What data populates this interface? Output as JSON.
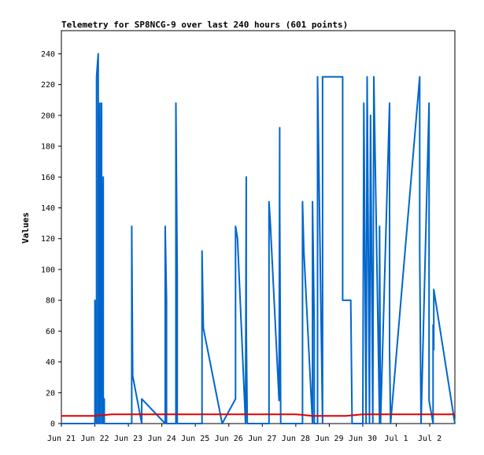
{
  "chart_data": {
    "type": "line",
    "title": "Telemetry for SP8NCG-9 over last 240 hours (601 points)",
    "xlabel": "",
    "ylabel": "Values",
    "x_ticks": [
      "Jun 21",
      "Jun 22",
      "Jun 23",
      "Jun 24",
      "Jun 25",
      "Jun 26",
      "Jun 27",
      "Jun 28",
      "Jun 29",
      "Jun 30",
      "Jul 1",
      "Jul 2"
    ],
    "y_ticks": [
      "0",
      "20",
      "40",
      "60",
      "80",
      "100",
      "120",
      "140",
      "160",
      "180",
      "200",
      "220",
      "240"
    ],
    "xlim": [
      0,
      11.75
    ],
    "ylim": [
      0,
      255
    ],
    "x_unit": "days after Jun 21 00:00",
    "grid": false,
    "series": [
      {
        "name": "",
        "color": "#0066cc",
        "x": [
          0.0,
          1.0,
          1.0,
          1.05,
          1.05,
          1.1,
          1.1,
          1.15,
          1.15,
          1.2,
          1.2,
          1.25,
          1.25,
          1.28,
          1.28,
          1.33,
          1.33,
          1.38,
          1.38,
          1.45,
          1.45,
          2.1,
          2.1,
          2.13,
          2.4,
          2.4,
          3.1,
          3.1,
          3.14,
          3.14,
          3.42,
          3.42,
          3.46,
          3.46,
          4.2,
          4.2,
          4.24,
          4.8,
          5.2,
          5.2,
          5.26,
          5.5,
          5.52,
          5.52,
          5.55,
          6.2,
          6.2,
          6.24,
          6.5,
          6.52,
          6.52,
          6.55,
          7.2,
          7.2,
          7.24,
          7.5,
          7.5,
          7.55,
          7.55,
          7.65,
          7.65,
          7.8,
          7.8,
          8.4,
          8.4,
          8.44,
          8.48,
          8.52,
          8.6,
          8.64,
          8.68,
          8.72,
          9.0,
          9.03,
          9.1,
          9.13,
          9.2,
          9.23,
          9.3,
          9.33,
          9.5,
          9.5,
          9.53,
          9.8,
          9.8,
          9.83,
          10.7,
          10.7,
          10.74,
          10.98,
          10.98,
          11.1,
          11.1,
          11.12,
          11.12,
          11.75
        ],
        "y": [
          0,
          0,
          80,
          0,
          225,
          240,
          0,
          208,
          0,
          208,
          0,
          160,
          0,
          16,
          0,
          0,
          0,
          0,
          0,
          0,
          0,
          0,
          128,
          31,
          0,
          16,
          0,
          128,
          80,
          0,
          0,
          208,
          96,
          0,
          0,
          112,
          62,
          0,
          16,
          128,
          120,
          0,
          160,
          64,
          0,
          0,
          144,
          130,
          15,
          192,
          145,
          0,
          0,
          144,
          112,
          0,
          144,
          64,
          0,
          0,
          225,
          0,
          225,
          225,
          80,
          80,
          80,
          80,
          80,
          80,
          0,
          0,
          0,
          208,
          0,
          225,
          0,
          200,
          0,
          225,
          0,
          128,
          0,
          208,
          48,
          0,
          225,
          112,
          0,
          208,
          15,
          0,
          64,
          48,
          87,
          0
        ]
      },
      {
        "name": "",
        "color": "#dd0000",
        "x": [
          0.0,
          0.5,
          1.0,
          1.5,
          2.0,
          2.5,
          3.0,
          3.5,
          4.0,
          4.5,
          5.0,
          5.5,
          6.0,
          6.5,
          7.0,
          7.5,
          8.0,
          8.5,
          9.0,
          9.5,
          10.0,
          10.5,
          11.0,
          11.5,
          11.75
        ],
        "y": [
          5,
          5,
          5,
          6,
          6,
          6,
          6,
          6,
          6,
          6,
          6,
          6,
          6,
          6,
          6,
          5,
          5,
          5,
          6,
          6,
          6,
          6,
          6,
          6,
          6
        ]
      }
    ]
  }
}
